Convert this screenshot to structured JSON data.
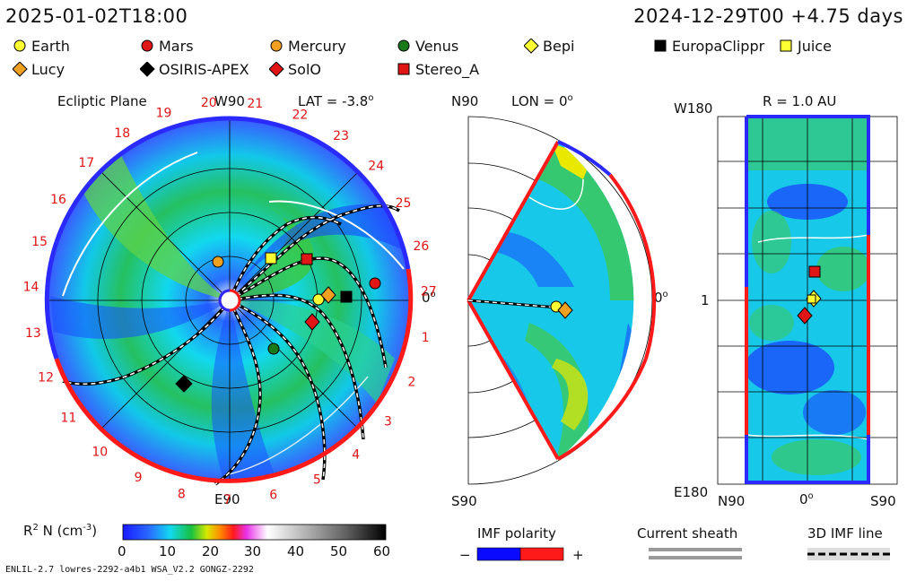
{
  "header": {
    "left_time": "2025-01-02T18:00",
    "right_time": "2024-12-29T00 +4.75 days"
  },
  "legend": [
    {
      "label": "Earth",
      "marker": "circle",
      "color": "#ffff33"
    },
    {
      "label": "Mars",
      "marker": "circle",
      "color": "#e01515"
    },
    {
      "label": "Mercury",
      "marker": "circle",
      "color": "#f0a020"
    },
    {
      "label": "Venus",
      "marker": "circle",
      "color": "#1a7a1a"
    },
    {
      "label": "Bepi",
      "marker": "diamond",
      "color": "#ffff33"
    },
    {
      "label": "EuropaClippr",
      "marker": "square",
      "color": "#000000"
    },
    {
      "label": "Juice",
      "marker": "square",
      "color": "#ffff33"
    },
    {
      "label": "Lucy",
      "marker": "diamond",
      "color": "#f0a020"
    },
    {
      "label": "OSIRIS-APEX",
      "marker": "diamond",
      "color": "#000000"
    },
    {
      "label": "SolO",
      "marker": "diamond",
      "color": "#e01515"
    },
    {
      "label": "Stereo_A",
      "marker": "square",
      "color": "#e01515"
    }
  ],
  "ecliptic": {
    "title": "Ecliptic Plane",
    "lat_label": "LAT = -3.8",
    "lat_sup": "o",
    "top_label": "W90",
    "bottom_label": "E90",
    "right_label": "0",
    "right_sup": "o",
    "rotation_numbers": [
      "20",
      "21",
      "22",
      "23",
      "24",
      "25",
      "26",
      "27",
      "1",
      "2",
      "3",
      "4",
      "5",
      "6",
      "7",
      "8",
      "9",
      "10",
      "11",
      "12",
      "13",
      "14",
      "15",
      "16",
      "17",
      "18",
      "19"
    ]
  },
  "meridional": {
    "top_label": "N90",
    "lon_label": "LON = 0",
    "lon_sup": "o",
    "right_label": "0",
    "right_sup": "o",
    "bottom_label": "S90"
  },
  "radial": {
    "r_label": "R = 1.0 AU",
    "top_left": "W180",
    "mid_left": "1",
    "bottom_left": "E180",
    "bottom_x": [
      "N90",
      "0",
      "S90"
    ],
    "bottom_x_sup": "o"
  },
  "colorbar": {
    "label": "R",
    "label_sup": "2",
    "label_rest": " N (cm",
    "label_sup2": "-3",
    "label_end": ")",
    "ticks": [
      "0",
      "10",
      "20",
      "30",
      "40",
      "50",
      "60"
    ]
  },
  "imf": {
    "title": "IMF polarity",
    "minus": "−",
    "plus": "+",
    "neg_color": "#0a0aff",
    "pos_color": "#ff1a1a"
  },
  "sheath": {
    "title": "Current sheath"
  },
  "imfline": {
    "title": "3D IMF line"
  },
  "footer": {
    "text": "ENLIL-2.7 lowres-2292-a4b1 WSA_V2.2 GONGZ-2292"
  }
}
